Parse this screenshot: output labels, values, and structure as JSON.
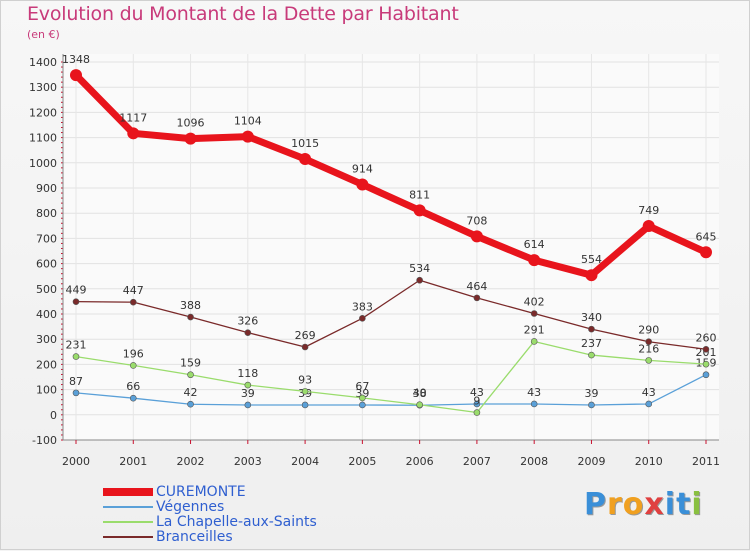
{
  "title": "Evolution du Montant de la Dette par Habitant",
  "unit_label": "(en €)",
  "logo": {
    "text": "Proxiti",
    "letters": [
      "P",
      "r",
      "o",
      "x",
      "i",
      "t",
      "i"
    ],
    "colors": [
      "#3a8fd8",
      "#f0a020",
      "#f0a020",
      "#e04040",
      "#3a8fd8",
      "#3a8fd8",
      "#8ac040"
    ]
  },
  "chart_data": {
    "type": "line",
    "title": "Evolution du Montant de la Dette par Habitant",
    "ylabel": "(en €)",
    "xlabel": "",
    "ylim": [
      -100,
      1400
    ],
    "yticks": [
      -100,
      0,
      100,
      200,
      300,
      400,
      500,
      600,
      700,
      800,
      900,
      1000,
      1100,
      1200,
      1300,
      1400
    ],
    "x": [
      "2000",
      "2001",
      "2002",
      "2003",
      "2004",
      "2005",
      "2006",
      "2007",
      "2008",
      "2009",
      "2010",
      "2011"
    ],
    "grid": true,
    "series": [
      {
        "name": "CUREMONTE",
        "color": "#e8141c",
        "width": 7,
        "marker": 6,
        "values": [
          1348,
          1117,
          1096,
          1104,
          1015,
          914,
          811,
          708,
          614,
          554,
          749,
          645
        ]
      },
      {
        "name": "Végennes",
        "color": "#5aa0d8",
        "width": 1.3,
        "marker": 3,
        "values": [
          87,
          66,
          42,
          39,
          39,
          39,
          38,
          43,
          43,
          39,
          43,
          159
        ]
      },
      {
        "name": "La Chapelle-aux-Saints",
        "color": "#9adc6c",
        "width": 1.3,
        "marker": 3,
        "values": [
          231,
          196,
          159,
          118,
          93,
          67,
          40,
          9,
          291,
          237,
          216,
          201
        ]
      },
      {
        "name": "Branceilles",
        "color": "#7a2a2a",
        "width": 1.3,
        "marker": 3,
        "values": [
          449,
          447,
          388,
          326,
          269,
          383,
          534,
          464,
          402,
          340,
          290,
          260
        ]
      }
    ]
  }
}
